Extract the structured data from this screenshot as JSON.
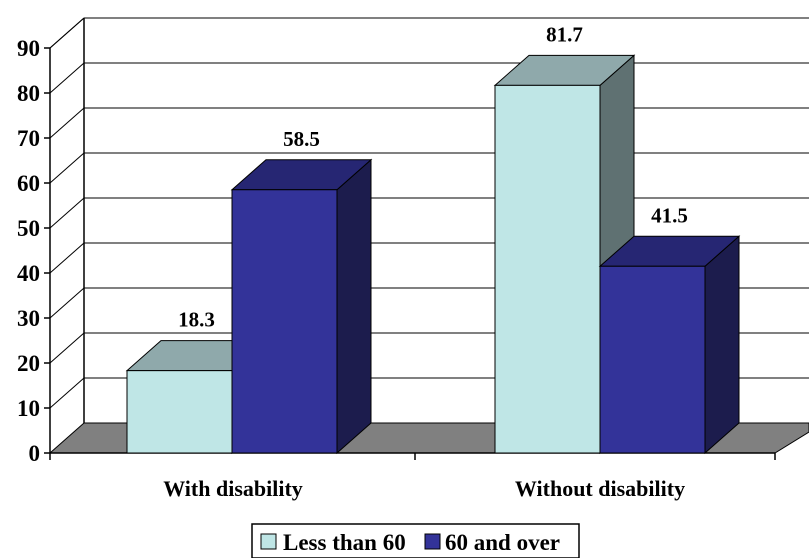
{
  "chart_data": {
    "type": "bar",
    "categories": [
      "With disability",
      "Without disability"
    ],
    "series": [
      {
        "name": "Less than 60",
        "values": [
          18.3,
          81.7
        ]
      },
      {
        "name": "60 and over",
        "values": [
          58.5,
          41.5
        ]
      }
    ],
    "data_labels": [
      "18.3",
      "58.5",
      "81.7",
      "41.5"
    ],
    "y_ticks": [
      "0",
      "10",
      "20",
      "30",
      "40",
      "50",
      "60",
      "70",
      "80",
      "90"
    ],
    "ylim": [
      0,
      90
    ],
    "grid": true,
    "style_3d": true,
    "legend_position": "bottom"
  },
  "colors": {
    "series_0": {
      "front": "#bfe6e6",
      "top": "#8fa9ab",
      "side": "#5f7172"
    },
    "series_1": {
      "front": "#333399",
      "top": "#262673",
      "side": "#1c1c4d"
    },
    "floor": "#808080"
  }
}
